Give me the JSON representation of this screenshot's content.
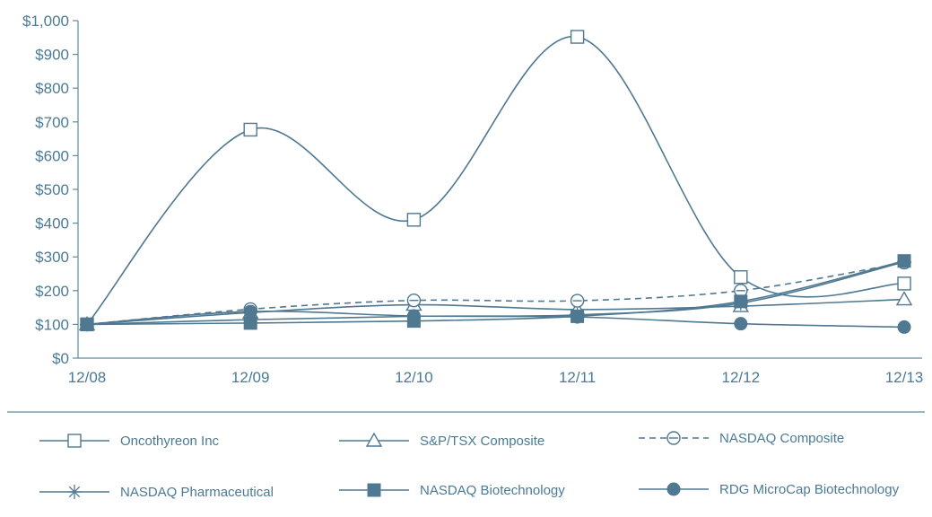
{
  "colors": {
    "line": "#4f7891",
    "text": "#4a7a94",
    "axis": "#5f8aa0"
  },
  "chart_data": {
    "type": "line",
    "title": "",
    "xlabel": "",
    "ylabel": "",
    "categories": [
      "12/08",
      "12/09",
      "12/10",
      "12/11",
      "12/12",
      "12/13"
    ],
    "y_tick_labels": [
      "$0",
      "$100",
      "$200",
      "$300",
      "$400",
      "$500",
      "$600",
      "$700",
      "$800",
      "$900",
      "$1,000"
    ],
    "ylim": [
      0,
      1000
    ],
    "grid": false,
    "legend_position": "bottom",
    "series": [
      {
        "name": "Oncothyreon Inc",
        "marker": "open-square",
        "dashed": false,
        "values": [
          100,
          677,
          410,
          952,
          240,
          221
        ]
      },
      {
        "name": "S&P/TSX Composite",
        "marker": "open-triangle",
        "dashed": false,
        "values": [
          100,
          135,
          158,
          144,
          154,
          174
        ]
      },
      {
        "name": "NASDAQ Composite",
        "marker": "open-circle-minus",
        "dashed": true,
        "values": [
          100,
          145,
          171,
          170,
          200,
          283
        ]
      },
      {
        "name": "NASDAQ Pharmaceutical",
        "marker": "asterisk",
        "dashed": false,
        "values": [
          100,
          114,
          124,
          128,
          163,
          285
        ]
      },
      {
        "name": "NASDAQ Biotechnology",
        "marker": "filled-square",
        "dashed": false,
        "values": [
          100,
          104,
          110,
          124,
          168,
          288
        ]
      },
      {
        "name": "RDG MicroCap Biotechnology",
        "marker": "filled-circle",
        "dashed": false,
        "values": [
          100,
          138,
          125,
          122,
          102,
          92
        ]
      }
    ]
  }
}
